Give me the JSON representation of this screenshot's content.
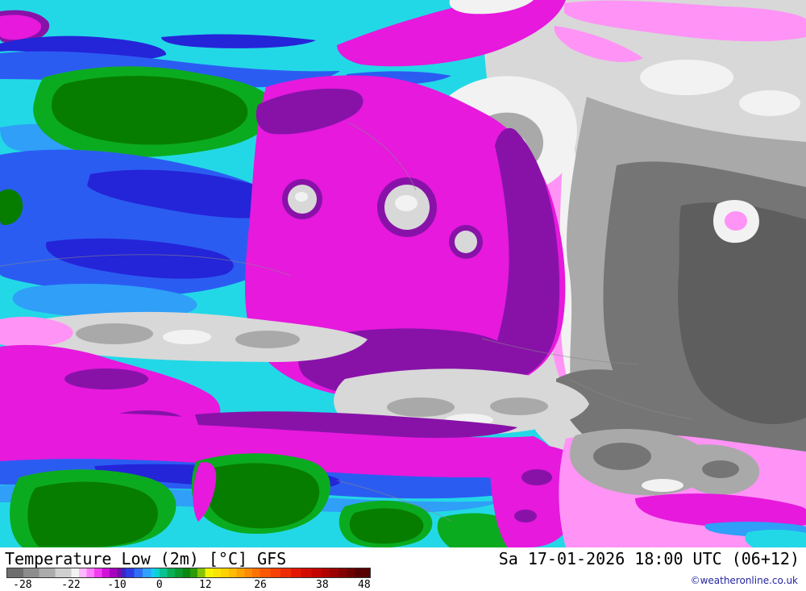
{
  "map": {
    "palette": {
      "cyan": "#23d8e6",
      "lightblue": "#2f9ff8",
      "blue": "#2b5cf2",
      "darkblue": "#2424d8",
      "green": "#0bab20",
      "greenDark": "#077d00",
      "magenta": "#e619dd",
      "pink": "#ff93f6",
      "purple": "#8812a8",
      "grayLightest": "#f2f2f2",
      "grayLight": "#d8d8d8",
      "gray": "#a9a9a9",
      "grayDark": "#757575",
      "grayDarkest": "#5e5e5e",
      "border": "#8a8a8a"
    }
  },
  "footer": {
    "title": "Temperature Low (2m) [°C] GFS",
    "datetime": "Sa 17-01-2026 18:00 UTC (06+12)",
    "copyright": "©weatheronline.co.uk"
  },
  "legend": {
    "min": -30,
    "max": 48,
    "anchors": [
      [
        -30,
        0
      ],
      [
        -28,
        4.4
      ],
      [
        -22,
        17.7
      ],
      [
        -10,
        30.3
      ],
      [
        0,
        42.0
      ],
      [
        12,
        54.6
      ],
      [
        26,
        69.7
      ],
      [
        38,
        86.7
      ],
      [
        48,
        98.2
      ]
    ],
    "tick_values": [
      -28,
      -22,
      -10,
      0,
      12,
      26,
      38,
      48
    ],
    "tick_labels": [
      "-28",
      "-22",
      "-10",
      "0",
      "12",
      "26",
      "38",
      "48"
    ],
    "steps": [
      {
        "t": -30,
        "color": "#6e6e6e"
      },
      {
        "t": -28,
        "color": "#8c8c8c"
      },
      {
        "t": -26,
        "color": "#ababab"
      },
      {
        "t": -24,
        "color": "#cfcfcf"
      },
      {
        "t": -22,
        "color": "#f2f2f2"
      },
      {
        "t": -20,
        "color": "#ffb8ff"
      },
      {
        "t": -18,
        "color": "#ff7bff"
      },
      {
        "t": -16,
        "color": "#f13df1"
      },
      {
        "t": -14,
        "color": "#d212d9"
      },
      {
        "t": -12,
        "color": "#a503bd"
      },
      {
        "t": -10,
        "color": "#7a0ca3"
      },
      {
        "t": -9,
        "color": "#3d23c9"
      },
      {
        "t": -8,
        "color": "#2e3ce4"
      },
      {
        "t": -6,
        "color": "#2e6ef6"
      },
      {
        "t": -4,
        "color": "#2ea2ff"
      },
      {
        "t": -2,
        "color": "#16ccf2"
      },
      {
        "t": -1,
        "color": "#0ad2cc"
      },
      {
        "t": 0,
        "color": "#08c292"
      },
      {
        "t": 2,
        "color": "#09ad52"
      },
      {
        "t": 4,
        "color": "#0a9a30"
      },
      {
        "t": 6,
        "color": "#0b8714"
      },
      {
        "t": 8,
        "color": "#2d9b07"
      },
      {
        "t": 10,
        "color": "#83c405"
      },
      {
        "t": 12,
        "color": "#f6f303"
      },
      {
        "t": 14,
        "color": "#fbe303"
      },
      {
        "t": 16,
        "color": "#ffd103"
      },
      {
        "t": 18,
        "color": "#ffbc03"
      },
      {
        "t": 20,
        "color": "#ffa303"
      },
      {
        "t": 22,
        "color": "#ff8a03"
      },
      {
        "t": 24,
        "color": "#ff7103"
      },
      {
        "t": 26,
        "color": "#fc5803"
      },
      {
        "t": 28,
        "color": "#f64103"
      },
      {
        "t": 30,
        "color": "#ee2b03"
      },
      {
        "t": 32,
        "color": "#e31703"
      },
      {
        "t": 34,
        "color": "#d40b02"
      },
      {
        "t": 36,
        "color": "#c40402"
      },
      {
        "t": 38,
        "color": "#b00002"
      },
      {
        "t": 40,
        "color": "#9a0002"
      },
      {
        "t": 42,
        "color": "#840001"
      },
      {
        "t": 44,
        "color": "#6e0001"
      },
      {
        "t": 46,
        "color": "#580001"
      }
    ]
  }
}
